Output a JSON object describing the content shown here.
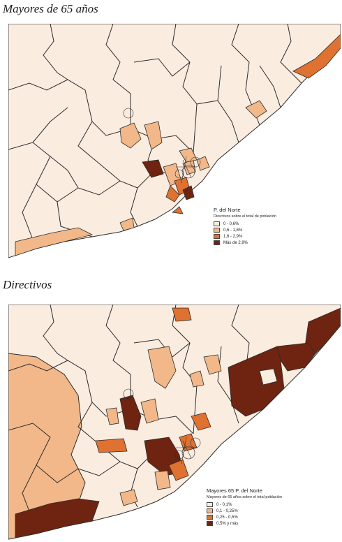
{
  "maps": [
    {
      "title": "Mayores de 65 años",
      "legend": {
        "title": "P. del Norte",
        "subtitle": "Directivos sobre el total de población",
        "classes": [
          {
            "label": "0 - 0,6%",
            "color": "#fbece0"
          },
          {
            "label": "0,6 - 1,6%",
            "color": "#f2b889"
          },
          {
            "label": "1,6 - 2,9%",
            "color": "#df7131"
          },
          {
            "label": "Más de 2,9%",
            "color": "#6e2410"
          }
        ]
      }
    },
    {
      "title": "Directivos",
      "legend": {
        "title": "Mayores 65  P. del Norte",
        "subtitle": "Mayores de 65 años sobre el total población",
        "classes": [
          {
            "label": "0 - 0,1%",
            "color": "#fbece0"
          },
          {
            "label": "0,1 - 0,25%",
            "color": "#f2b889"
          },
          {
            "label": "0,25 - 0,5%",
            "color": "#df7131"
          },
          {
            "label": "0,5%  y más",
            "color": "#6e2410"
          }
        ]
      }
    }
  ],
  "colors": {
    "land": "#fbece0",
    "sea": "#ffffff",
    "border": "#2b2b2b"
  }
}
